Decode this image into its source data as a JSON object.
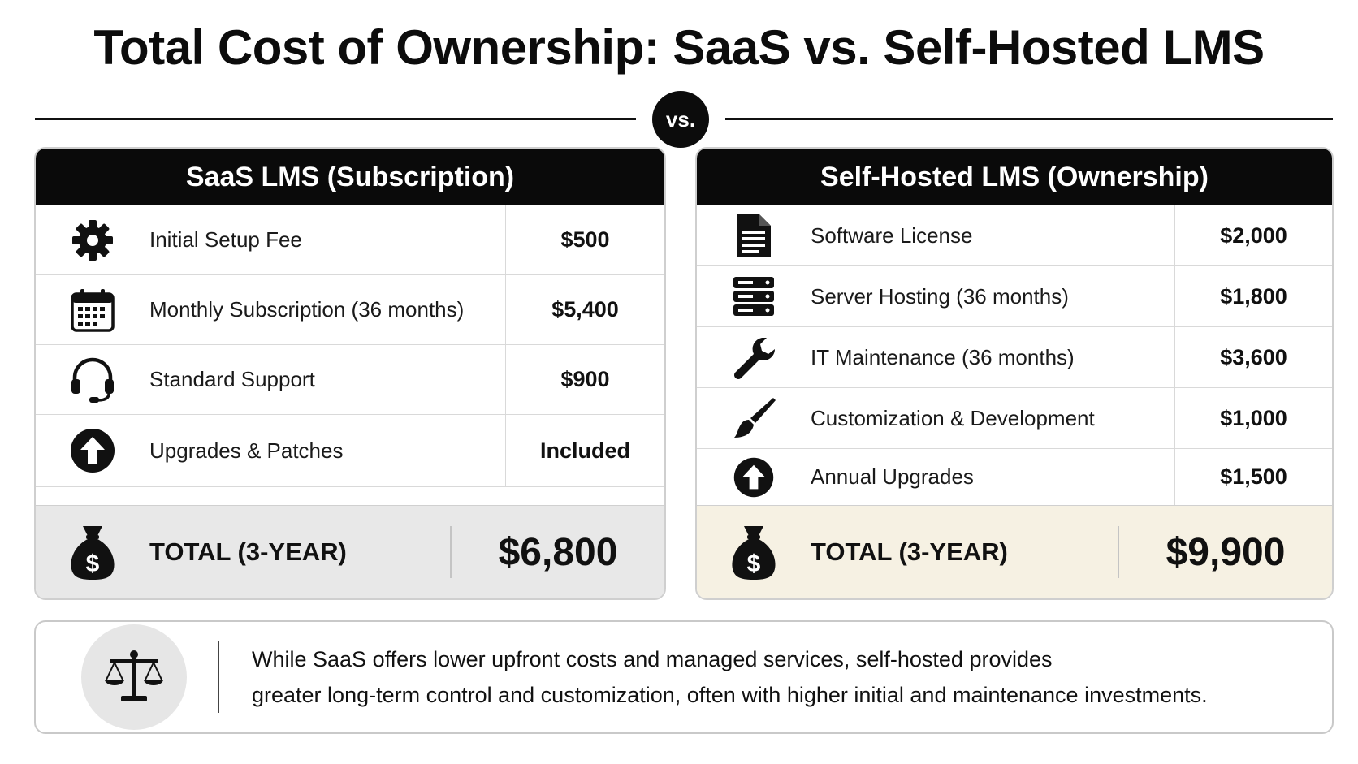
{
  "title": "Total Cost of Ownership: SaaS vs. Self-Hosted LMS",
  "vs_label": "vs.",
  "saas": {
    "header": "SaaS LMS (Subscription)",
    "rows": [
      {
        "icon": "gear-icon",
        "label": "Initial Setup Fee",
        "value": "$500"
      },
      {
        "icon": "calendar-icon",
        "label": "Monthly Subscription (36 months)",
        "value": "$5,400"
      },
      {
        "icon": "headset-icon",
        "label": "Standard Support",
        "value": "$900"
      },
      {
        "icon": "upgrade-arrow-icon",
        "label": "Upgrades & Patches",
        "value": "Included"
      }
    ],
    "total_label": "TOTAL (3-YEAR)",
    "total_value": "$6,800",
    "total_bg": "#e8e8e8"
  },
  "self_hosted": {
    "header": "Self-Hosted LMS (Ownership)",
    "rows": [
      {
        "icon": "document-icon",
        "label": "Software License",
        "value": "$2,000"
      },
      {
        "icon": "server-icon",
        "label": "Server Hosting (36 months)",
        "value": "$1,800"
      },
      {
        "icon": "wrench-icon",
        "label": "IT Maintenance (36 months)",
        "value": "$3,600"
      },
      {
        "icon": "paintbrush-icon",
        "label": "Customization & Development",
        "value": "$1,000"
      },
      {
        "icon": "upgrade-arrow-icon",
        "label": "Annual Upgrades",
        "value": "$1,500"
      }
    ],
    "total_label": "TOTAL (3-YEAR)",
    "total_value": "$9,900",
    "total_bg": "#f6f1e3"
  },
  "summary": {
    "icon": "balance-scale-icon",
    "line1": "While SaaS offers lower upfront costs and managed services, self-hosted provides",
    "line2": "greater long-term control and customization, often with higher initial and maintenance investments."
  },
  "colors": {
    "header_bg": "#0a0a0a",
    "text": "#111111",
    "border": "#cfcfcf"
  }
}
